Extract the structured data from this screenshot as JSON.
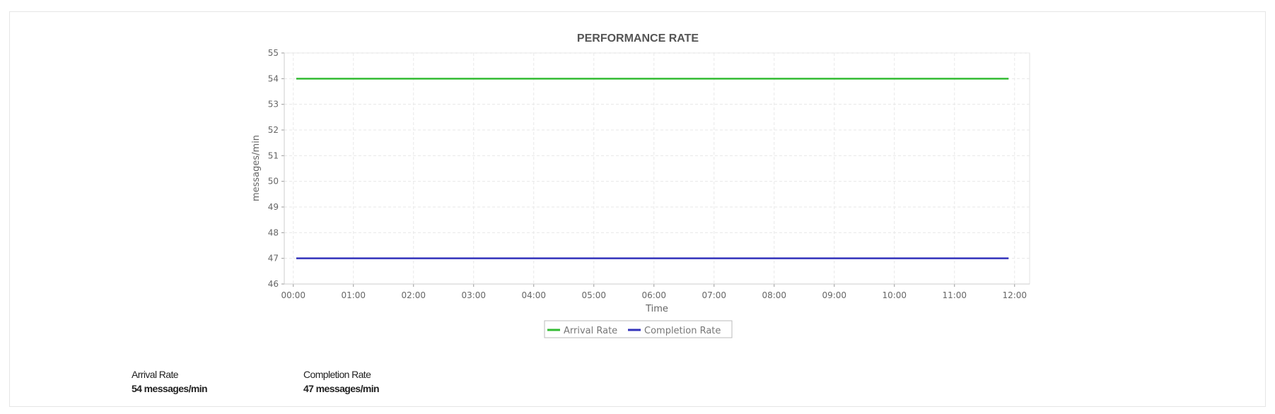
{
  "chart_data": {
    "type": "line",
    "title": "PERFORMANCE RATE",
    "xlabel": "Time",
    "ylabel": "messages/min",
    "x_ticks": [
      "00:00",
      "01:00",
      "02:00",
      "03:00",
      "04:00",
      "05:00",
      "06:00",
      "07:00",
      "08:00",
      "09:00",
      "10:00",
      "11:00",
      "12:00"
    ],
    "xlim_hours": [
      -0.15,
      12.25
    ],
    "ylim": [
      46,
      55
    ],
    "y_ticks": [
      46,
      47,
      48,
      49,
      50,
      51,
      52,
      53,
      54,
      55
    ],
    "grid": true,
    "legend_position": "bottom-center",
    "series": [
      {
        "name": "Arrival Rate",
        "color": "#33bb33",
        "x_hours": [
          0.05,
          11.9
        ],
        "values": [
          54,
          54
        ]
      },
      {
        "name": "Completion Rate",
        "color": "#3333bb",
        "x_hours": [
          0.05,
          11.9
        ],
        "values": [
          47,
          47
        ]
      }
    ]
  },
  "summary": [
    {
      "label": "Arrival Rate",
      "value": "54 messages/min"
    },
    {
      "label": "Completion Rate",
      "value": "47 messages/min"
    }
  ]
}
